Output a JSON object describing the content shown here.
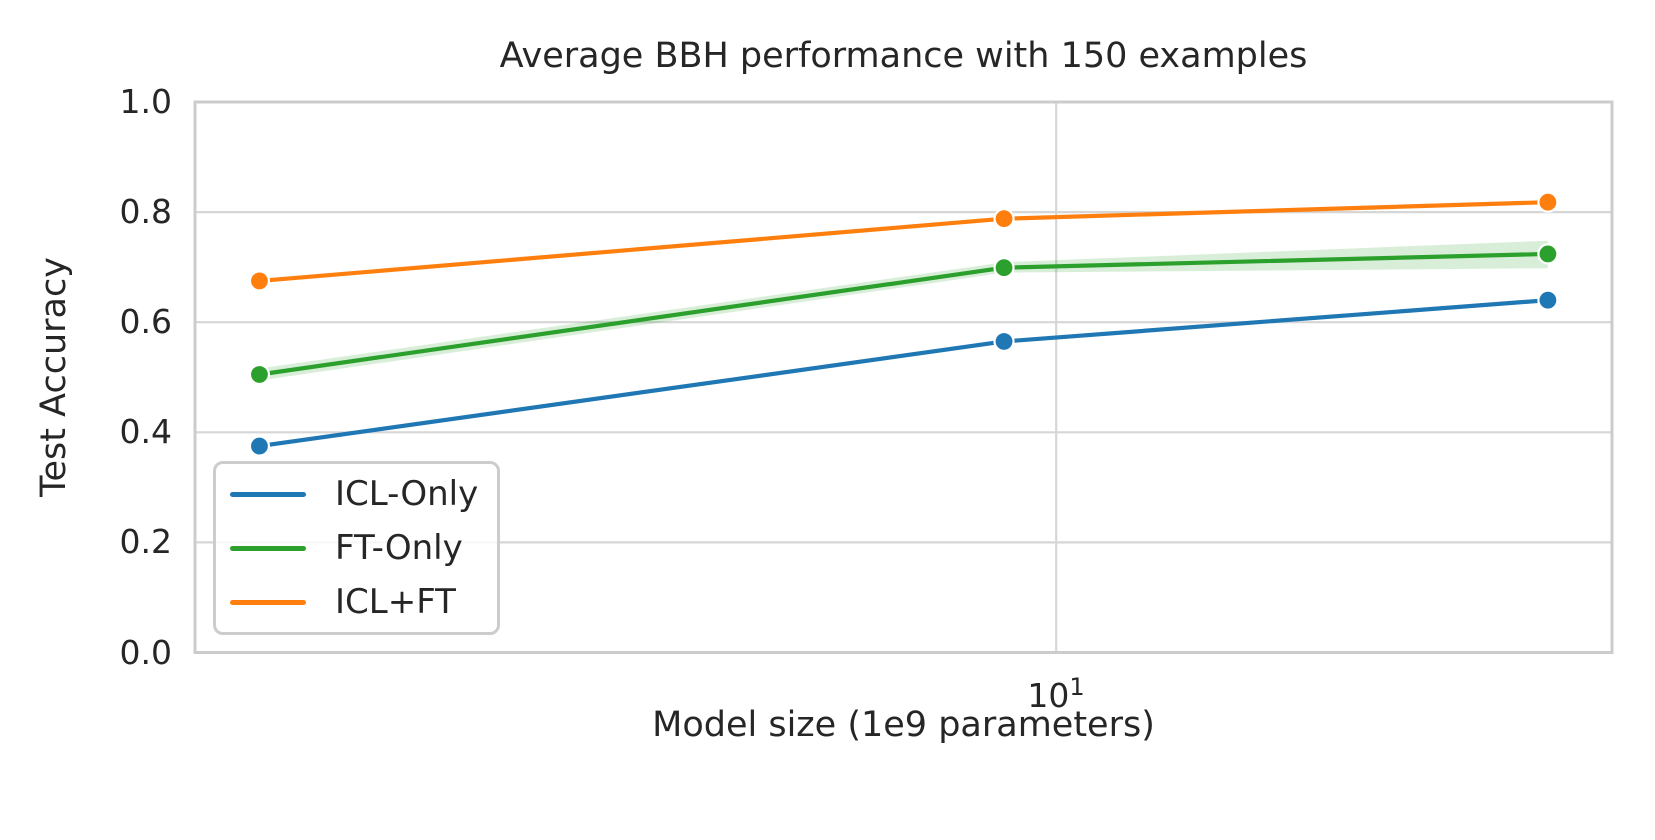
{
  "chart_data": {
    "type": "line",
    "title": "Average BBH performance with 150 examples",
    "xlabel": "Model size (1e9 parameters)",
    "ylabel": "Test Accuracy",
    "x_scale": "log",
    "x": [
      2,
      9,
      27
    ],
    "series": [
      {
        "name": "ICL-Only",
        "color": "#1f77b4",
        "values": [
          0.375,
          0.565,
          0.64
        ]
      },
      {
        "name": "FT-Only",
        "color": "#2ca02c",
        "values": [
          0.505,
          0.699,
          0.724
        ],
        "band_lower": [
          0.494,
          0.69,
          0.698
        ],
        "band_upper": [
          0.516,
          0.709,
          0.748
        ],
        "band_opacity": 0.18
      },
      {
        "name": "ICL+FT",
        "color": "#ff7f0e",
        "values": [
          0.675,
          0.788,
          0.818
        ]
      }
    ],
    "xlim_log10": [
      0.2445,
      1.4876
    ],
    "ylim": [
      0,
      1
    ],
    "yticks": [
      0.0,
      0.2,
      0.4,
      0.6,
      0.8,
      1.0
    ],
    "ytick_labels": [
      "0.0",
      "0.2",
      "0.4",
      "0.6",
      "0.8",
      "1.0"
    ],
    "xticks": [
      {
        "value": 10,
        "base": "10",
        "exponent": "1"
      }
    ],
    "grid": true,
    "legend_position": "lower-left",
    "legend_entries": [
      "ICL-Only",
      "FT-Only",
      "ICL+FT"
    ],
    "grid_color": "#d6d6d6",
    "spine_color": "#cccccc",
    "text_color": "#262626",
    "marker": "circle",
    "marker_edge_color": "#ffffff"
  }
}
